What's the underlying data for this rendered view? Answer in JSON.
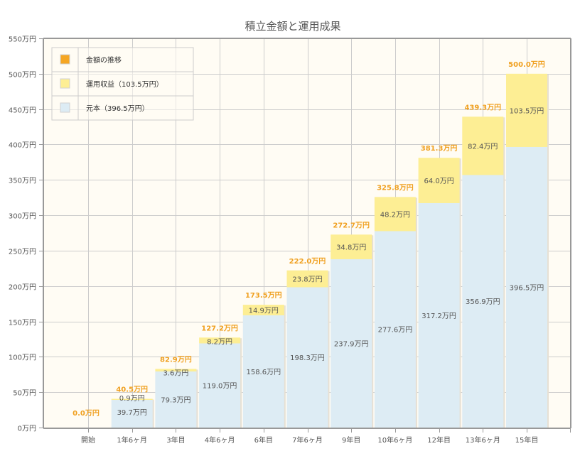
{
  "chart_data": {
    "type": "bar",
    "stacked": true,
    "title": "積立金額と運用成果",
    "xlabel": "",
    "ylabel": "",
    "ylim": [
      0,
      550
    ],
    "yticks": [
      0,
      50,
      100,
      150,
      200,
      250,
      300,
      350,
      400,
      450,
      500,
      550
    ],
    "ytick_labels": [
      "0万円",
      "50万円",
      "100万円",
      "150万円",
      "200万円",
      "250万円",
      "300万円",
      "350万円",
      "400万円",
      "450万円",
      "500万円",
      "550万円"
    ],
    "grid": true,
    "categories": [
      "開始",
      "1年6ヶ月",
      "3年目",
      "4年6ヶ月",
      "6年目",
      "7年6ヶ月",
      "9年目",
      "10年6ヶ月",
      "12年目",
      "13年6ヶ月",
      "15年目"
    ],
    "series": [
      {
        "name": "元本",
        "color": "#ddecf4",
        "values": [
          0,
          39.7,
          79.3,
          119.0,
          158.6,
          198.3,
          237.9,
          277.6,
          317.2,
          356.9,
          396.5
        ],
        "labels": [
          "",
          "39.7万円",
          "79.3万円",
          "119.0万円",
          "158.6万円",
          "198.3万円",
          "237.9万円",
          "277.6万円",
          "317.2万円",
          "356.9万円",
          "396.5万円"
        ]
      },
      {
        "name": "運用収益",
        "color": "#fdee94",
        "values": [
          0,
          0.9,
          3.6,
          8.2,
          14.9,
          23.8,
          34.8,
          48.2,
          64.0,
          82.4,
          103.5
        ],
        "labels": [
          "",
          "0.9万円",
          "3.6万円",
          "8.2万円",
          "14.9万円",
          "23.8万円",
          "34.8万円",
          "48.2万円",
          "64.0万円",
          "82.4万円",
          "103.5万円"
        ]
      }
    ],
    "totals": {
      "name": "金額の推移",
      "color": "#f5a623",
      "values": [
        0.0,
        40.5,
        82.9,
        127.2,
        173.5,
        222.0,
        272.7,
        325.8,
        381.3,
        439.3,
        500.0
      ],
      "labels": [
        "0.0万円",
        "40.5万円",
        "82.9万円",
        "127.2万円",
        "173.5万円",
        "222.0万円",
        "272.7万円",
        "325.8万円",
        "381.3万円",
        "439.3万円",
        "500.0万円"
      ]
    },
    "legend": {
      "position": "top-left",
      "entries": [
        {
          "label": "金額の推移",
          "color": "#f5a623"
        },
        {
          "label": "運用収益（103.5万円）",
          "color": "#fdee94"
        },
        {
          "label": "元本（396.5万円）",
          "color": "#ddecf4"
        }
      ]
    }
  }
}
